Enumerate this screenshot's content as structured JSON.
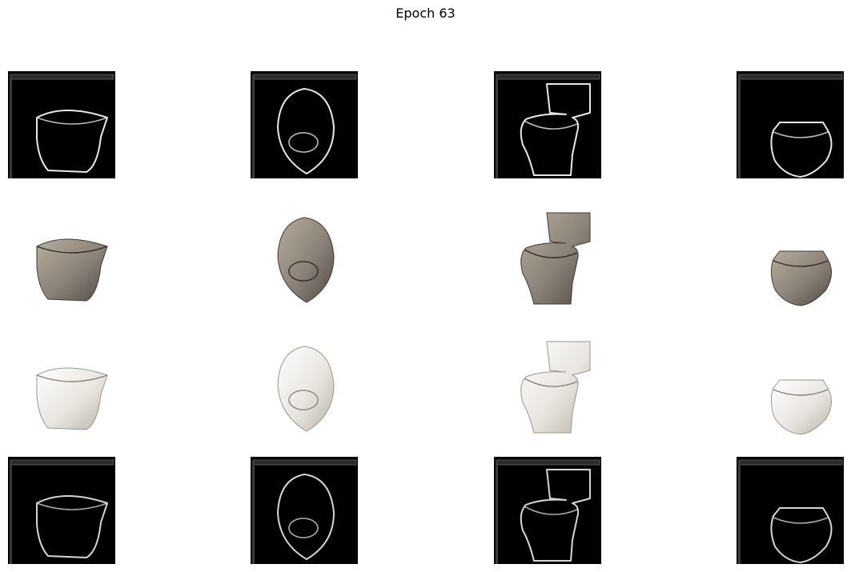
{
  "figure": {
    "title": "Epoch 63"
  },
  "grid": {
    "columns": 4,
    "rows": [
      {
        "kind": "edge-input",
        "background": "#000000",
        "stroke": "#e8e8e8",
        "tiles": [
          {
            "name": "bidet-outline-input",
            "shape": "bidet"
          },
          {
            "name": "urinal-outline-input",
            "shape": "urinal"
          },
          {
            "name": "toilet-outline-input",
            "shape": "toilet"
          },
          {
            "name": "bowl-outline-input",
            "shape": "bowl"
          }
        ]
      },
      {
        "kind": "generated-photo",
        "background": "#ffffff",
        "fill": "#8a8278",
        "tiles": [
          {
            "name": "bidet-generated-image",
            "shape": "bidet"
          },
          {
            "name": "urinal-generated-image",
            "shape": "urinal"
          },
          {
            "name": "toilet-generated-image",
            "shape": "toilet"
          },
          {
            "name": "bowl-generated-image",
            "shape": "bowl"
          }
        ]
      },
      {
        "kind": "target-photo",
        "background": "#ffffff",
        "fill": "#e9e6e1",
        "tiles": [
          {
            "name": "bidet-target-image",
            "shape": "bidet"
          },
          {
            "name": "urinal-target-image",
            "shape": "urinal"
          },
          {
            "name": "toilet-target-image",
            "shape": "toilet"
          },
          {
            "name": "bowl-target-image",
            "shape": "bowl"
          }
        ]
      },
      {
        "kind": "edge-reconstruction",
        "background": "#000000",
        "stroke": "#d6d6d6",
        "tiles": [
          {
            "name": "bidet-outline-reconstruction",
            "shape": "bidet"
          },
          {
            "name": "urinal-outline-reconstruction",
            "shape": "urinal"
          },
          {
            "name": "toilet-outline-reconstruction",
            "shape": "toilet"
          },
          {
            "name": "bowl-outline-reconstruction",
            "shape": "bowl"
          }
        ]
      }
    ]
  }
}
